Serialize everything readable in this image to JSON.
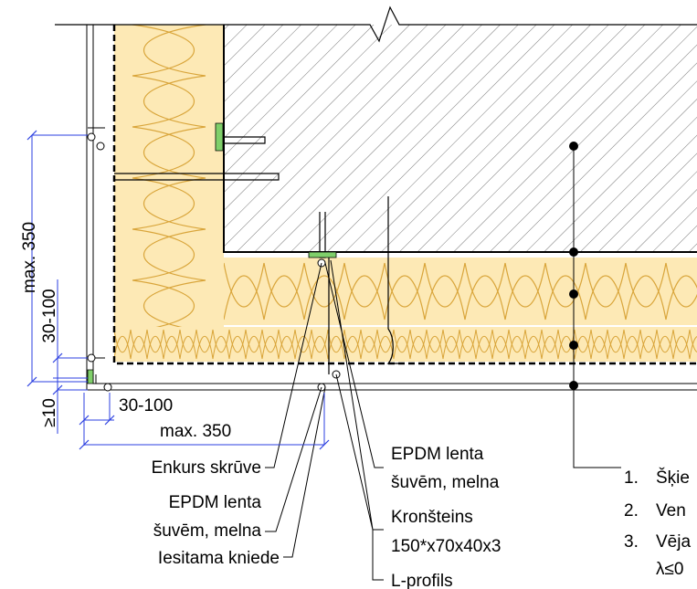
{
  "dimensions": {
    "vertical_max": "max. 350",
    "vertical_range": "30-100",
    "vertical_min": "≥10",
    "horizontal_range": "30-100",
    "horizontal_max": "max. 350"
  },
  "left_labels": [
    "Enkurs skrūve",
    "EPDM lenta",
    "šuvēm, melna",
    "Iesitama kniede"
  ],
  "right_labels": [
    "EPDM lenta",
    "šuvēm, melna",
    "Kronšteins",
    "150*x70x40x3",
    "L-profils"
  ],
  "legend": [
    {
      "marker": "1.",
      "text": "Šķie"
    },
    {
      "marker": "2.",
      "text": "Ven"
    },
    {
      "marker": "3.",
      "text": "Vēja"
    }
  ],
  "legend_note": "λ≤0"
}
